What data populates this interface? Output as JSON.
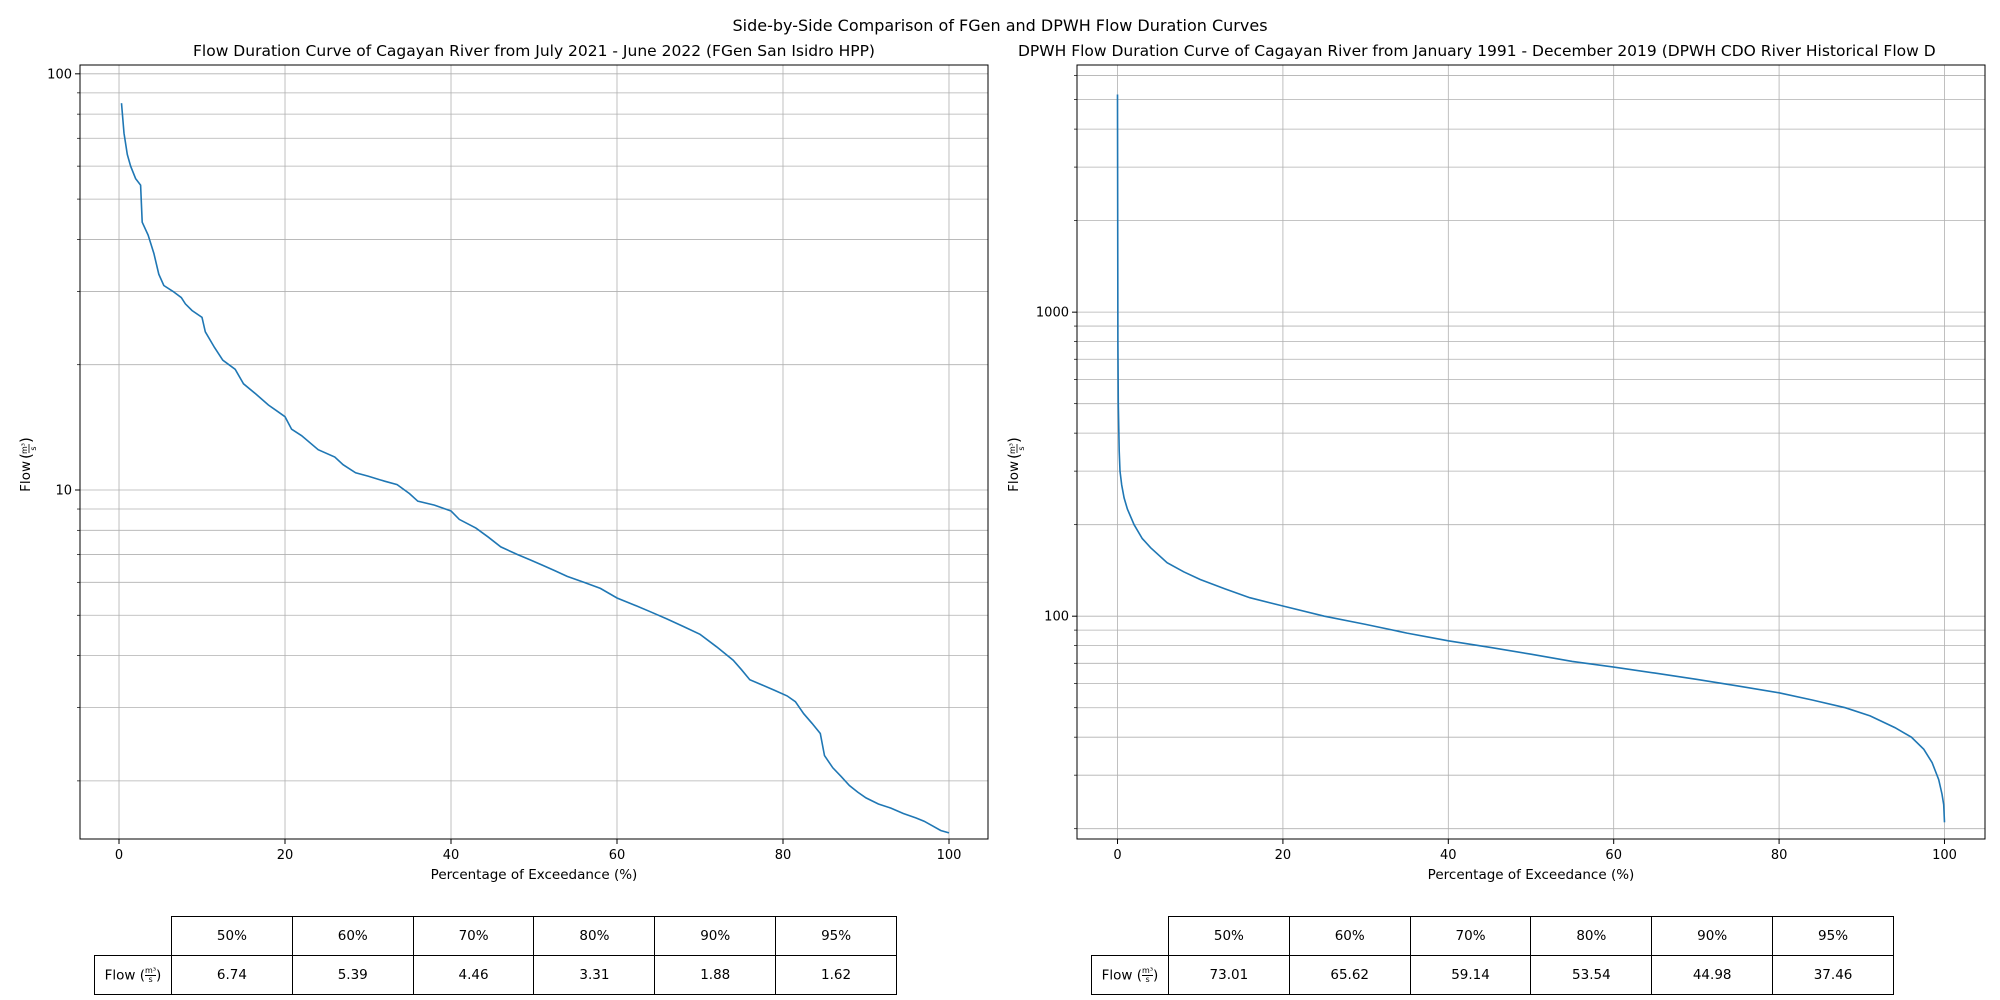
{
  "figure": {
    "suptitle": "Side-by-Side Comparison of FGen and DPWH Flow Duration Curves"
  },
  "chart_data": [
    {
      "type": "line",
      "title": "Flow Duration Curve of Cagayan River from July 2021 - June 2022 (FGen San Isidro HPP)",
      "xlabel": "Percentage of Exceedance (%)",
      "ylabel": "Flow",
      "ylabel_unit": {
        "numerator": "m³",
        "denominator": "s"
      },
      "yscale": "log",
      "xlim": [
        -4.7,
        104.7
      ],
      "ylim": [
        1.45,
        105
      ],
      "xticks": [
        0,
        20,
        40,
        60,
        80,
        100
      ],
      "yticks_major": [
        10,
        100
      ],
      "grid": true,
      "series": [
        {
          "color": "#1f77b4",
          "x": [
            0.3,
            0.6,
            1.0,
            1.4,
            2.0,
            2.6,
            2.8,
            3.5,
            4.2,
            4.8,
            5.4,
            6.5,
            7.5,
            8.0,
            8.8,
            10.0,
            10.4,
            11.5,
            12.5,
            14.0,
            15.0,
            16.5,
            18.0,
            19.0,
            20.0,
            20.8,
            22.0,
            24.0,
            26.0,
            27.0,
            28.5,
            30.0,
            32.0,
            33.5,
            35.0,
            36.0,
            38.0,
            40.0,
            41.0,
            43.0,
            44.5,
            46.0,
            48.0,
            49.5,
            51.0,
            52.5,
            54.0,
            56.0,
            58.0,
            60.0,
            62.0,
            64.0,
            66.0,
            68.0,
            70.0,
            72.0,
            74.0,
            75.0,
            76.0,
            77.5,
            79.0,
            80.5,
            81.5,
            82.5,
            83.5,
            84.5,
            85.0,
            86.0,
            87.0,
            88.0,
            89.0,
            90.0,
            91.5,
            93.0,
            94.5,
            96.0,
            97.0,
            98.0,
            99.0,
            100.0
          ],
          "y": [
            85,
            72,
            64,
            60,
            56,
            54,
            44,
            41,
            37,
            33,
            31,
            30,
            29,
            28,
            27,
            26,
            24,
            22,
            20.5,
            19.5,
            18,
            17,
            16,
            15.5,
            15,
            14,
            13.5,
            12.5,
            12,
            11.5,
            11,
            10.8,
            10.5,
            10.3,
            9.8,
            9.4,
            9.2,
            8.9,
            8.5,
            8.1,
            7.7,
            7.3,
            7.0,
            6.8,
            6.6,
            6.4,
            6.2,
            6.0,
            5.8,
            5.5,
            5.3,
            5.1,
            4.9,
            4.7,
            4.5,
            4.2,
            3.9,
            3.7,
            3.5,
            3.4,
            3.3,
            3.2,
            3.1,
            2.9,
            2.75,
            2.6,
            2.3,
            2.15,
            2.05,
            1.95,
            1.88,
            1.82,
            1.76,
            1.72,
            1.67,
            1.63,
            1.6,
            1.56,
            1.52,
            1.5
          ]
        }
      ]
    },
    {
      "type": "line",
      "title": "DPWH Flow Duration Curve of Cagayan River from January 1991 - December 2019 (DPWH CDO River Historical Flow D",
      "xlabel": "Percentage of Exceedance (%)",
      "ylabel": "Flow",
      "ylabel_unit": {
        "numerator": "m³",
        "denominator": "s"
      },
      "yscale": "log",
      "xlim": [
        -4.9,
        104.9
      ],
      "ylim": [
        18.5,
        6500
      ],
      "xticks": [
        0,
        20,
        40,
        60,
        80,
        100
      ],
      "yticks_major": [
        100,
        1000
      ],
      "grid": true,
      "series": [
        {
          "color": "#1f77b4",
          "x": [
            0,
            0.02,
            0.05,
            0.1,
            0.2,
            0.3,
            0.5,
            0.8,
            1.2,
            2.0,
            3.0,
            4.0,
            6.0,
            8.0,
            10.0,
            13.0,
            16.0,
            20.0,
            25.0,
            30.0,
            35.0,
            40.0,
            45.0,
            50.0,
            55.0,
            60.0,
            65.0,
            70.0,
            75.0,
            80.0,
            84.0,
            88.0,
            91.0,
            94.0,
            96.0,
            97.5,
            98.5,
            99.3,
            99.7,
            99.9,
            100.0
          ],
          "y": [
            5200,
            2000,
            800,
            500,
            350,
            300,
            270,
            245,
            225,
            200,
            180,
            168,
            150,
            140,
            132,
            123,
            115,
            108,
            100,
            94,
            88,
            83,
            79,
            75,
            71,
            68,
            65,
            62,
            59,
            56,
            53,
            50,
            47,
            43,
            40,
            36.5,
            33,
            29,
            26,
            24,
            21
          ]
        }
      ]
    }
  ],
  "tables": [
    {
      "headers": [
        "50%",
        "60%",
        "70%",
        "80%",
        "90%",
        "95%"
      ],
      "row_label": "Flow",
      "unit": {
        "numerator": "m³",
        "denominator": "s"
      },
      "values": [
        "6.74",
        "5.39",
        "4.46",
        "3.31",
        "1.88",
        "1.62"
      ]
    },
    {
      "headers": [
        "50%",
        "60%",
        "70%",
        "80%",
        "90%",
        "95%"
      ],
      "row_label": "Flow",
      "unit": {
        "numerator": "m³",
        "denominator": "s"
      },
      "values": [
        "73.01",
        "65.62",
        "59.14",
        "53.54",
        "44.98",
        "37.46"
      ]
    }
  ]
}
